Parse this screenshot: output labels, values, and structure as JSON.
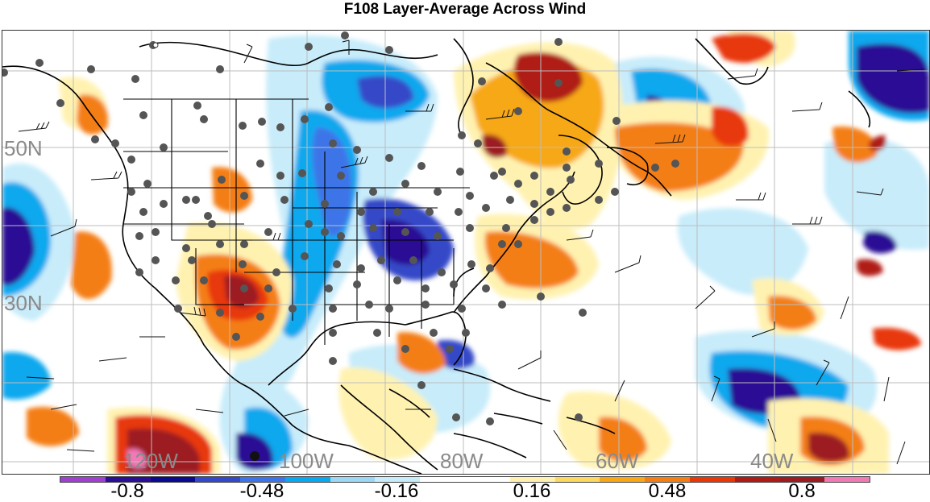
{
  "title": "F108 Layer-Average Across Wind",
  "latitude_labels": [
    "50N",
    "30N"
  ],
  "longitude_labels": [
    "120W",
    "100W",
    "80W",
    "60W",
    "40W"
  ],
  "colorbar": {
    "colors": [
      "#a040d0",
      "#2a0e94",
      "#0a0a90",
      "#3548c8",
      "#3d74e8",
      "#0aa8ee",
      "#9cd8f6",
      "#c8ecfa",
      "#ffffff",
      "#ffffff",
      "#fff2b0",
      "#fcd860",
      "#f7a816",
      "#f47e14",
      "#e8380a",
      "#b01a16",
      "#9c1a22",
      "#f07ab6"
    ],
    "tick_labels": [
      "-0.8",
      "-0.48",
      "-0.16",
      "0.16",
      "0.48",
      "0.8"
    ]
  },
  "legend_values": [
    -0.8,
    -0.48,
    -0.16,
    0.16,
    0.48,
    0.8
  ],
  "map_features": {
    "field": "layer-average across wind",
    "overlays": [
      "station dots",
      "wind barbs",
      "coastlines",
      "state borders",
      "lat/lon grid"
    ],
    "colors": {
      "grid": "#bdbdbd",
      "coast": "#000000",
      "station": "#555555"
    }
  }
}
